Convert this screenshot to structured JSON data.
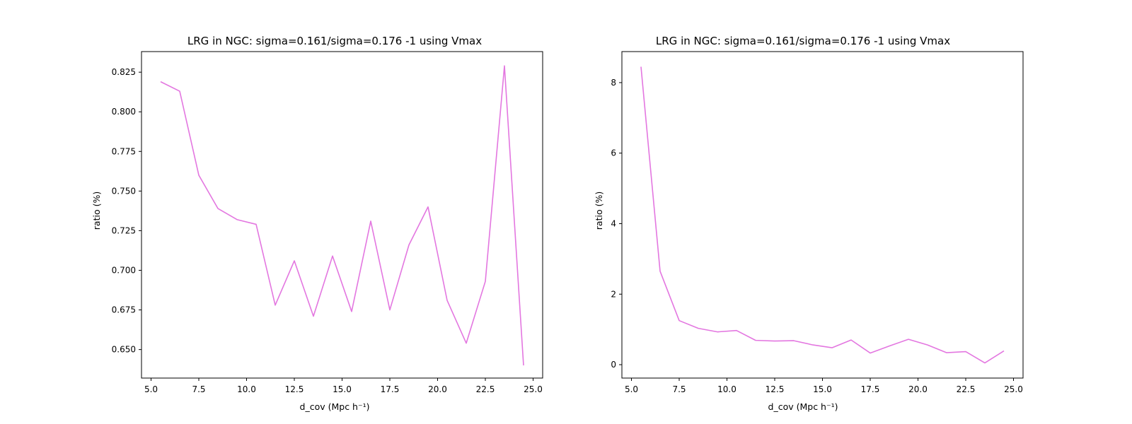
{
  "chart_data": [
    {
      "type": "line",
      "title": "LRG in NGC: sigma=0.161/sigma=0.176 -1 using Vmax",
      "xlabel": "d_cov (Mpc h⁻¹)",
      "ylabel": "ratio (%)",
      "xlim": [
        4.5,
        25.5
      ],
      "ylim": [
        0.632,
        0.838
      ],
      "xticks": [
        5.0,
        7.5,
        10.0,
        12.5,
        15.0,
        17.5,
        20.0,
        22.5,
        25.0
      ],
      "xtick_labels": [
        "5.0",
        "7.5",
        "10.0",
        "12.5",
        "15.0",
        "17.5",
        "20.0",
        "22.5",
        "25.0"
      ],
      "yticks": [
        0.65,
        0.675,
        0.7,
        0.725,
        0.75,
        0.775,
        0.8,
        0.825
      ],
      "ytick_labels": [
        "0.650",
        "0.675",
        "0.700",
        "0.725",
        "0.750",
        "0.775",
        "0.800",
        "0.825"
      ],
      "grid": false,
      "color": "#e377e0",
      "series": [
        {
          "x": [
            5.5,
            6.5,
            7.5,
            8.5,
            9.5,
            10.5,
            11.5,
            12.5,
            13.5,
            14.5,
            15.5,
            16.5,
            17.5,
            18.5,
            19.5,
            20.5,
            21.5,
            22.5,
            23.5,
            24.5
          ],
          "y": [
            0.819,
            0.813,
            0.76,
            0.739,
            0.732,
            0.729,
            0.678,
            0.706,
            0.671,
            0.709,
            0.674,
            0.731,
            0.675,
            0.716,
            0.74,
            0.681,
            0.654,
            0.693,
            0.829,
            0.64
          ]
        }
      ]
    },
    {
      "type": "line",
      "title": "LRG in NGC: sigma=0.161/sigma=0.176 -1 using Vmax",
      "xlabel": "d_cov (Mpc h⁻¹)",
      "ylabel": "ratio (%)",
      "xlim": [
        4.5,
        25.5
      ],
      "ylim": [
        -0.38,
        8.88
      ],
      "xticks": [
        5.0,
        7.5,
        10.0,
        12.5,
        15.0,
        17.5,
        20.0,
        22.5,
        25.0
      ],
      "xtick_labels": [
        "5.0",
        "7.5",
        "10.0",
        "12.5",
        "15.0",
        "17.5",
        "20.0",
        "22.5",
        "25.0"
      ],
      "yticks": [
        0,
        2,
        4,
        6,
        8
      ],
      "ytick_labels": [
        "0",
        "2",
        "4",
        "6",
        "8"
      ],
      "grid": false,
      "color": "#e377e0",
      "series": [
        {
          "x": [
            5.5,
            6.5,
            7.5,
            8.5,
            9.5,
            10.5,
            11.5,
            12.5,
            13.5,
            14.5,
            15.5,
            16.5,
            17.5,
            18.5,
            19.5,
            20.5,
            21.5,
            22.5,
            23.5,
            24.5
          ],
          "y": [
            8.45,
            2.65,
            1.25,
            1.03,
            0.93,
            0.97,
            0.69,
            0.67,
            0.68,
            0.56,
            0.48,
            0.7,
            0.33,
            0.53,
            0.72,
            0.56,
            0.34,
            0.37,
            0.05,
            0.39
          ]
        }
      ]
    }
  ]
}
